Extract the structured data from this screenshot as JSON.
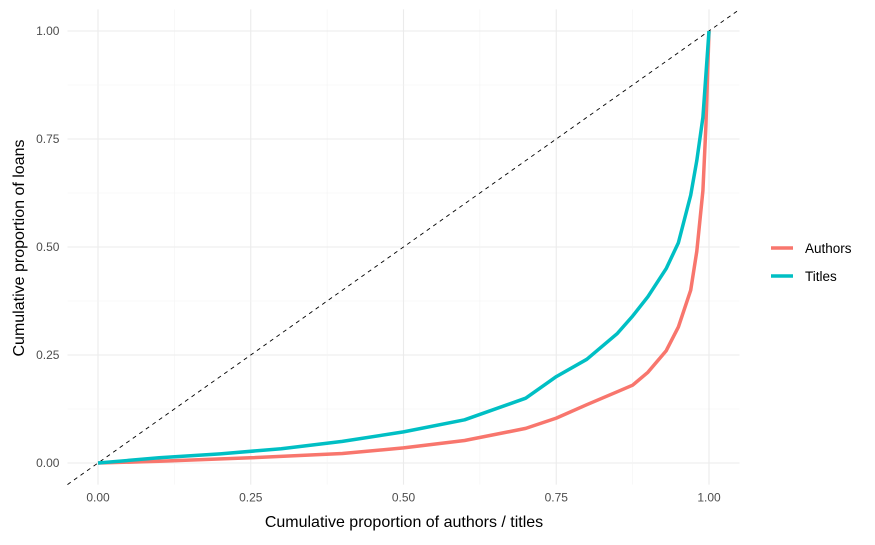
{
  "chart_data": {
    "type": "line",
    "title": "",
    "xlabel": "Cumulative proportion of authors / titles",
    "ylabel": "Cumulative proportion of loans",
    "xlim": [
      -0.05,
      1.05
    ],
    "ylim": [
      -0.05,
      1.05
    ],
    "xticks": [
      "0.00",
      "0.25",
      "0.50",
      "0.75",
      "1.00"
    ],
    "yticks": [
      "0.00",
      "0.25",
      "0.50",
      "0.75",
      "1.00"
    ],
    "grid": true,
    "legend_position": "right",
    "reference_line": {
      "style": "dashed",
      "color": "#000000",
      "from": [
        0,
        0
      ],
      "to": [
        1,
        1
      ]
    },
    "series": [
      {
        "name": "Authors",
        "color": "#F8766D",
        "x": [
          0,
          0.1,
          0.25,
          0.4,
          0.5,
          0.6,
          0.7,
          0.75,
          0.8,
          0.85,
          0.875,
          0.9,
          0.93,
          0.95,
          0.97,
          0.98,
          0.99,
          0.995,
          1.0
        ],
        "y": [
          0,
          0.004,
          0.012,
          0.022,
          0.035,
          0.052,
          0.08,
          0.104,
          0.135,
          0.165,
          0.18,
          0.21,
          0.26,
          0.315,
          0.4,
          0.49,
          0.63,
          0.78,
          1.0
        ]
      },
      {
        "name": "Titles",
        "color": "#00BFC4",
        "x": [
          0,
          0.1,
          0.2,
          0.3,
          0.4,
          0.5,
          0.6,
          0.7,
          0.75,
          0.8,
          0.85,
          0.875,
          0.9,
          0.93,
          0.95,
          0.97,
          0.98,
          0.99,
          1.0
        ],
        "y": [
          0,
          0.012,
          0.021,
          0.033,
          0.05,
          0.072,
          0.1,
          0.15,
          0.2,
          0.24,
          0.3,
          0.34,
          0.385,
          0.45,
          0.51,
          0.62,
          0.7,
          0.8,
          1.0
        ]
      }
    ]
  }
}
